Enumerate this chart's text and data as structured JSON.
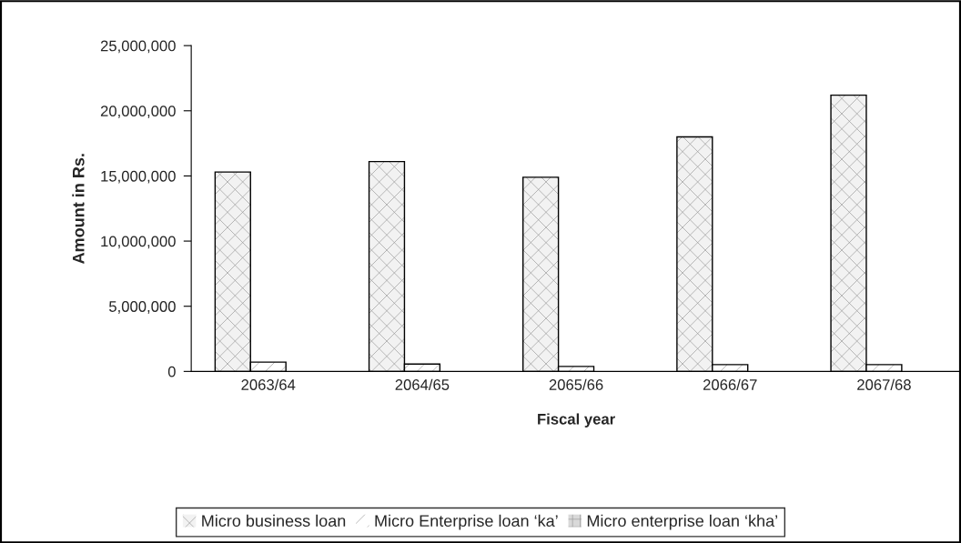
{
  "chart_data": {
    "type": "bar",
    "xlabel": "Fiscal year",
    "ylabel": "Amount in Rs.",
    "categories": [
      "2063/64",
      "2064/65",
      "2065/66",
      "2066/67",
      "2067/68"
    ],
    "series": [
      {
        "name": "Micro business loan",
        "color": "#f2f2f2",
        "values": [
          15300000,
          16100000,
          14900000,
          18000000,
          21200000
        ]
      },
      {
        "name": "Micro Enterprise loan ‘ka’",
        "color": "#ffffff",
        "values": [
          710000,
          570000,
          380000,
          520000,
          520000
        ]
      },
      {
        "name": "Micro enterprise loan ‘kha’",
        "color": "#d9d9d9",
        "values": [
          0,
          0,
          0,
          0,
          0
        ]
      }
    ],
    "ylim": [
      0,
      25000000
    ],
    "yticks": [
      {
        "value": 0,
        "label": "0"
      },
      {
        "value": 5000000,
        "label": "5,000,000"
      },
      {
        "value": 10000000,
        "label": "10,000,000"
      },
      {
        "value": 15000000,
        "label": "15,000,000"
      },
      {
        "value": 20000000,
        "label": "20,000,000"
      },
      {
        "value": 25000000,
        "label": "25,000,000"
      }
    ],
    "grid": false,
    "legend": "bottom"
  }
}
